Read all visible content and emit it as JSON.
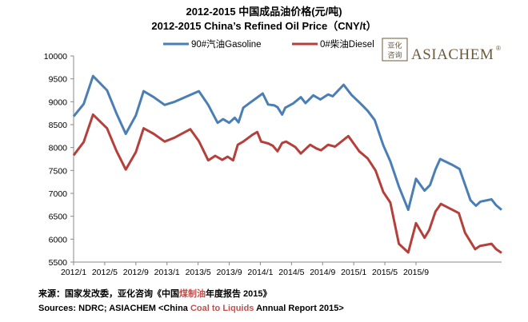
{
  "header": {
    "title_cn": "2012-2015 中国成品油价格(元/吨)",
    "title_en": "2012-2015 China’s Refined Oil Price（CNY/t）"
  },
  "logo": {
    "text": "ASIACHEM",
    "mark": "®",
    "seal_text": "亚化咨询"
  },
  "sources": {
    "cn_prefix": "来源：国家发改委，亚化咨询《中国",
    "cn_highlight": "煤制油",
    "cn_suffix": "年度报告 2015》",
    "en_prefix": "Sources: NDRC; ASIACHEM <China ",
    "en_highlight": "Coal to Liquids",
    "en_suffix": " Annual Report 2015>"
  },
  "colors": {
    "gasoline": "#4a7eb5",
    "diesel": "#b5403b",
    "highlight": "#c0504d"
  },
  "chart_data": {
    "type": "line",
    "title": "2012-2015 China’s Refined Oil Price（CNY/t）",
    "xlabel": "",
    "ylabel": "",
    "ylim": [
      5500,
      10000
    ],
    "yticks": [
      5500,
      6000,
      6500,
      7000,
      7500,
      8000,
      8500,
      9000,
      9500,
      10000
    ],
    "x_tick_labels": [
      "2012/1",
      "2012/5",
      "2012/9",
      "2013/1",
      "2013/5",
      "2013/9",
      "2014/1",
      "2014/5",
      "2014/9",
      "2015/1",
      "2015/5",
      "2015/9"
    ],
    "legend_position": "top",
    "grid": false,
    "series": [
      {
        "name": "90#汽油Gasoline",
        "color": "#4a7eb5",
        "points": [
          [
            0,
            8680
          ],
          [
            1.3,
            8950
          ],
          [
            2.5,
            9560
          ],
          [
            4.3,
            9250
          ],
          [
            5.5,
            8750
          ],
          [
            6.7,
            8300
          ],
          [
            8.0,
            8700
          ],
          [
            9.0,
            9230
          ],
          [
            10.3,
            9100
          ],
          [
            11.7,
            8930
          ],
          [
            13.0,
            9000
          ],
          [
            15.0,
            9150
          ],
          [
            16.1,
            9230
          ],
          [
            17.3,
            8930
          ],
          [
            18.5,
            8540
          ],
          [
            19.2,
            8620
          ],
          [
            20.0,
            8540
          ],
          [
            20.7,
            8650
          ],
          [
            21.2,
            8550
          ],
          [
            21.8,
            8870
          ],
          [
            22.6,
            8970
          ],
          [
            24.3,
            9180
          ],
          [
            25.0,
            8940
          ],
          [
            25.8,
            8920
          ],
          [
            26.2,
            8880
          ],
          [
            26.8,
            8720
          ],
          [
            27.2,
            8870
          ],
          [
            28.2,
            8960
          ],
          [
            29.2,
            9100
          ],
          [
            29.8,
            8970
          ],
          [
            30.8,
            9140
          ],
          [
            31.7,
            9050
          ],
          [
            32.7,
            9160
          ],
          [
            33.3,
            9120
          ],
          [
            34.7,
            9370
          ],
          [
            35.7,
            9150
          ],
          [
            37.0,
            8940
          ],
          [
            37.8,
            8800
          ],
          [
            38.7,
            8600
          ],
          [
            39.8,
            8050
          ],
          [
            40.7,
            7700
          ],
          [
            41.8,
            7150
          ],
          [
            43.0,
            6640
          ],
          [
            44.0,
            7320
          ],
          [
            45.1,
            7060
          ],
          [
            45.8,
            7180
          ],
          [
            46.5,
            7520
          ],
          [
            47.1,
            7750
          ],
          [
            48.7,
            7620
          ],
          [
            49.6,
            7530
          ],
          [
            51.0,
            6850
          ],
          [
            51.7,
            6730
          ],
          [
            52.3,
            6820
          ],
          [
            53.7,
            6870
          ],
          [
            54.3,
            6740
          ],
          [
            55.0,
            6640
          ]
        ]
      },
      {
        "name": "0#柴油Diesel",
        "color": "#b5403b",
        "points": [
          [
            0,
            7830
          ],
          [
            1.3,
            8120
          ],
          [
            2.5,
            8720
          ],
          [
            4.3,
            8420
          ],
          [
            5.5,
            7930
          ],
          [
            6.7,
            7520
          ],
          [
            8.0,
            7900
          ],
          [
            9.0,
            8420
          ],
          [
            10.3,
            8300
          ],
          [
            11.7,
            8130
          ],
          [
            13.0,
            8220
          ],
          [
            15.0,
            8400
          ],
          [
            16.1,
            8140
          ],
          [
            17.3,
            7720
          ],
          [
            18.2,
            7820
          ],
          [
            19.1,
            7730
          ],
          [
            19.8,
            7800
          ],
          [
            20.5,
            7720
          ],
          [
            21.1,
            8060
          ],
          [
            21.8,
            8130
          ],
          [
            23.0,
            8280
          ],
          [
            23.6,
            8340
          ],
          [
            24.1,
            8130
          ],
          [
            25.0,
            8090
          ],
          [
            25.6,
            8040
          ],
          [
            26.2,
            7920
          ],
          [
            26.8,
            8100
          ],
          [
            27.3,
            8130
          ],
          [
            28.5,
            8010
          ],
          [
            29.2,
            7870
          ],
          [
            30.4,
            8060
          ],
          [
            31.2,
            7980
          ],
          [
            31.8,
            7940
          ],
          [
            32.7,
            8060
          ],
          [
            33.6,
            8020
          ],
          [
            35.3,
            8250
          ],
          [
            36.7,
            7920
          ],
          [
            37.8,
            7760
          ],
          [
            38.8,
            7500
          ],
          [
            39.8,
            7030
          ],
          [
            40.7,
            6800
          ],
          [
            41.8,
            5900
          ],
          [
            43.0,
            5710
          ],
          [
            44.0,
            6350
          ],
          [
            45.1,
            6030
          ],
          [
            45.7,
            6200
          ],
          [
            46.5,
            6600
          ],
          [
            47.2,
            6770
          ],
          [
            49.5,
            6570
          ],
          [
            50.3,
            6140
          ],
          [
            51.6,
            5780
          ],
          [
            52.2,
            5850
          ],
          [
            53.7,
            5900
          ],
          [
            54.3,
            5780
          ],
          [
            55.0,
            5700
          ]
        ]
      }
    ]
  }
}
